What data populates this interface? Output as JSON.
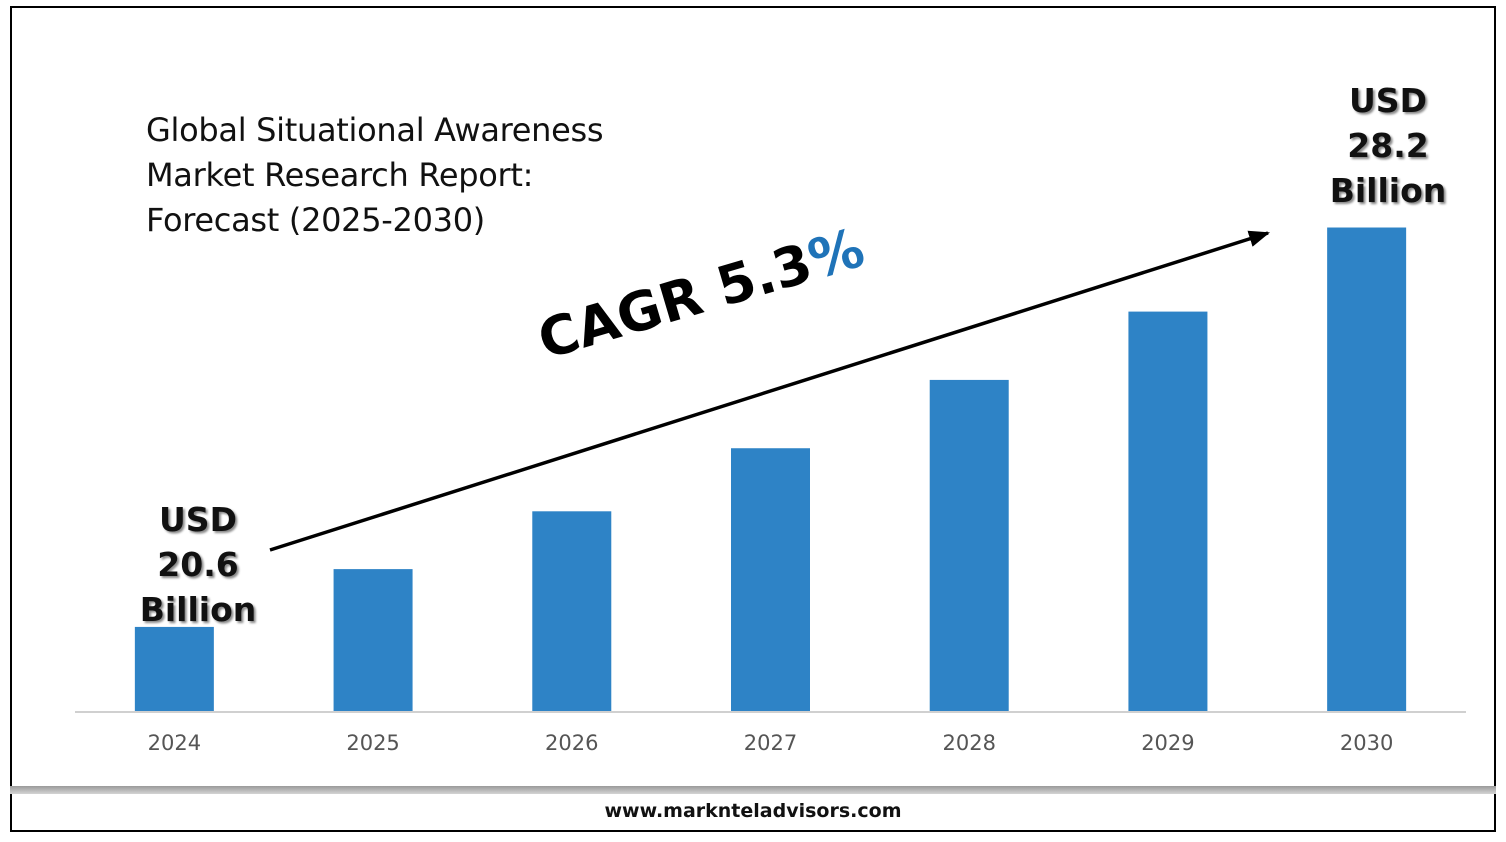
{
  "chart_data": {
    "type": "bar",
    "title": "Global Situational Awareness Market Research Report: Forecast (2025-2030)",
    "title_lines": [
      "Global Situational Awareness",
      "Market Research Report:",
      "Forecast (2025-2030)"
    ],
    "categories": [
      "2024",
      "2025",
      "2026",
      "2027",
      "2028",
      "2029",
      "2030"
    ],
    "values": [
      20.6,
      21.7,
      22.8,
      24.0,
      25.3,
      26.6,
      28.2
    ],
    "unit": "USD Billion",
    "ylim": [
      19,
      28.4
    ],
    "grid": false,
    "legend": "none",
    "bar_color": "#2e83c6",
    "annotations": {
      "start": {
        "lines": [
          "USD",
          "20.6",
          "Billion"
        ]
      },
      "end": {
        "lines": [
          "USD",
          "28.2",
          "Billion"
        ]
      },
      "cagr": {
        "prefix": "CAGR 5.3",
        "suffix": "%"
      }
    }
  },
  "colors": {
    "accent": "#1f73b8",
    "axis_line": "#d0d0d0",
    "tick_label": "#555555"
  },
  "footer": {
    "url": "www.marknteladvisors.com"
  }
}
